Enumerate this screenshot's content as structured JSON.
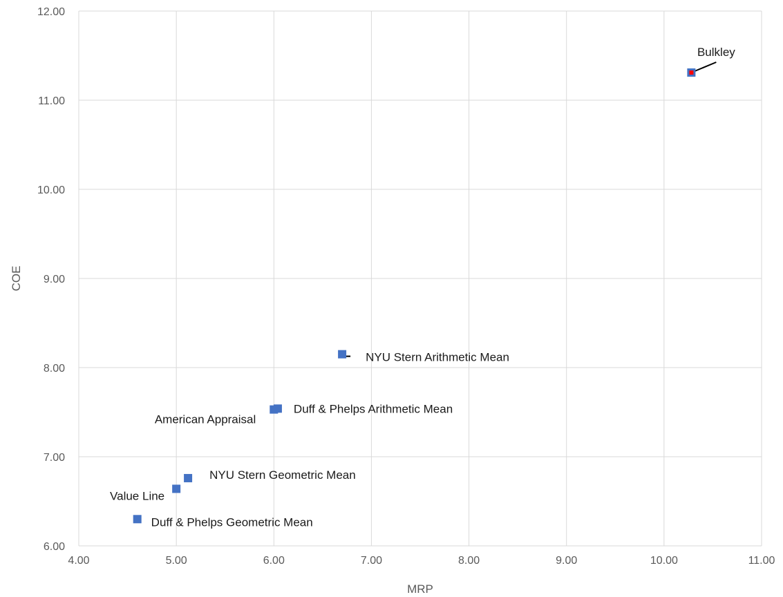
{
  "chart_data": {
    "type": "scatter",
    "xlabel": "MRP",
    "ylabel": "COE",
    "xlim": [
      4.0,
      11.0
    ],
    "ylim": [
      6.0,
      12.0
    ],
    "x_ticks": [
      "4.00",
      "5.00",
      "6.00",
      "7.00",
      "8.00",
      "9.00",
      "10.00",
      "11.00"
    ],
    "y_ticks": [
      "6.00",
      "7.00",
      "8.00",
      "9.00",
      "10.00",
      "11.00",
      "12.00"
    ],
    "grid": true,
    "legend": "none",
    "marker_color": "#4472c4",
    "highlight_color": "#ff0000",
    "points": [
      {
        "label": "Duff & Phelps Geometric Mean",
        "x": 4.6,
        "y": 6.3,
        "highlight": false
      },
      {
        "label": "Value Line",
        "x": 5.0,
        "y": 6.64,
        "highlight": false
      },
      {
        "label": "NYU Stern Geometric Mean",
        "x": 5.12,
        "y": 6.76,
        "highlight": false
      },
      {
        "label": "American Appraisal",
        "x": 6.0,
        "y": 7.53,
        "highlight": false
      },
      {
        "label": "Duff & Phelps Arithmetic Mean",
        "x": 6.04,
        "y": 7.54,
        "highlight": false
      },
      {
        "label": "NYU Stern Arithmetic Mean",
        "x": 6.7,
        "y": 8.15,
        "highlight": false
      },
      {
        "label": "Bulkley",
        "x": 10.28,
        "y": 11.31,
        "highlight": true
      }
    ]
  }
}
